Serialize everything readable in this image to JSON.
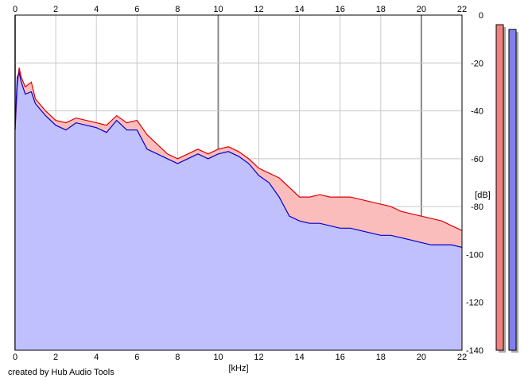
{
  "chart_data": {
    "type": "area",
    "xlabel": "[kHz]",
    "ylabel": "[dB]",
    "xlim": [
      0,
      22
    ],
    "ylim": [
      -140,
      0
    ],
    "x_ticks": [
      0,
      2,
      4,
      6,
      8,
      10,
      12,
      14,
      16,
      18,
      20,
      22
    ],
    "y_ticks": [
      0,
      -20,
      -40,
      -60,
      -80,
      -100,
      -120,
      -140
    ],
    "grid": true,
    "x_ticks_top": true,
    "series": [
      {
        "color": "#e00000",
        "fill": "#fbbcbc",
        "x": [
          0,
          0.1,
          0.2,
          0.3,
          0.5,
          0.8,
          1.0,
          1.5,
          2.0,
          2.5,
          3.0,
          3.5,
          4.0,
          4.5,
          5.0,
          5.5,
          6.0,
          6.5,
          7.0,
          7.5,
          8.0,
          8.5,
          9.0,
          9.5,
          10.0,
          10.5,
          11.0,
          11.5,
          12.0,
          12.5,
          13.0,
          13.5,
          14.0,
          14.5,
          15.0,
          15.5,
          16.0,
          16.5,
          17.0,
          17.5,
          18.0,
          18.5,
          19.0,
          19.5,
          20.0,
          20.5,
          21.0,
          21.5,
          22.0
        ],
        "y": [
          -48,
          -30,
          -22,
          -26,
          -30,
          -28,
          -35,
          -40,
          -44,
          -45,
          -43,
          -44,
          -45,
          -46,
          -42,
          -45,
          -44,
          -50,
          -54,
          -58,
          -60,
          -58,
          -56,
          -58,
          -56,
          -55,
          -57,
          -60,
          -64,
          -66,
          -68,
          -72,
          -76,
          -76,
          -75,
          -76,
          -76,
          -76,
          -77,
          -78,
          -79,
          -80,
          -82,
          -83,
          -84,
          -85,
          -86,
          -88,
          -90
        ]
      },
      {
        "color": "#0000c8",
        "fill": "#c0c0ff",
        "x": [
          0,
          0.1,
          0.2,
          0.3,
          0.5,
          0.8,
          1.0,
          1.5,
          2.0,
          2.5,
          3.0,
          3.5,
          4.0,
          4.5,
          5.0,
          5.5,
          6.0,
          6.5,
          7.0,
          7.5,
          8.0,
          8.5,
          9.0,
          9.5,
          10.0,
          10.5,
          11.0,
          11.5,
          12.0,
          12.5,
          13.0,
          13.5,
          14.0,
          14.5,
          15.0,
          15.5,
          16.0,
          16.5,
          17.0,
          17.5,
          18.0,
          18.5,
          19.0,
          19.5,
          20.0,
          20.5,
          21.0,
          21.5,
          22.0
        ],
        "y": [
          -48,
          -26,
          -24,
          -28,
          -33,
          -32,
          -37,
          -42,
          -46,
          -48,
          -45,
          -46,
          -47,
          -49,
          -44,
          -48,
          -48,
          -56,
          -58,
          -60,
          -62,
          -60,
          -58,
          -60,
          -58,
          -57,
          -59,
          -62,
          -67,
          -70,
          -76,
          -84,
          -86,
          -87,
          -87,
          -88,
          -89,
          -89,
          -90,
          -91,
          -92,
          -92,
          -93,
          -94,
          -95,
          -96,
          -96,
          -96,
          -97
        ]
      }
    ],
    "level_meters": [
      {
        "color": "#f08080",
        "value": -4
      },
      {
        "color": "#8080f0",
        "value": -6
      }
    ]
  },
  "footer": {
    "credit": "created by Hub Audio Tools"
  }
}
